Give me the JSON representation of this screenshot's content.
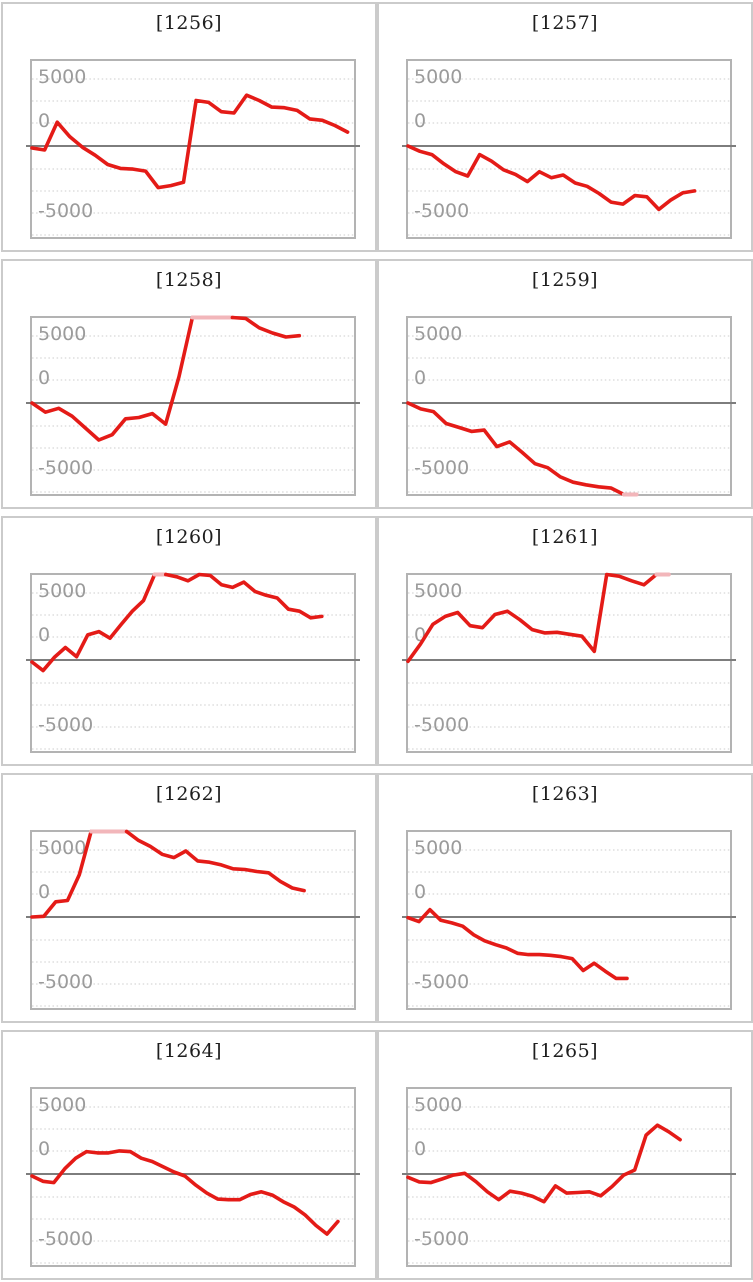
{
  "page": {
    "background_color": "#ffffff",
    "description_labels": {
      "panel_count": "10"
    }
  },
  "theme": {
    "panel_border_color": "#cbcbcb",
    "plot_border_color": "#b3b3b3",
    "gridline_color": "#cdcdcd",
    "zero_axis_color": "#7d7d7d",
    "tick_label_color": "#9b9b9b",
    "title_color": "#1e1e1e",
    "series_color": "#e41b17",
    "clipped_segment_color": "#f2b6ba"
  },
  "chart_data": {
    "type": "line",
    "title": "",
    "xlabel": "",
    "ylabel": "",
    "y_tick_labels": [
      "5000",
      "0",
      "-5000"
    ],
    "y_tick_values": [
      5000,
      0,
      -5000
    ],
    "ylim": [
      -6900,
      6450
    ],
    "grid": "horizontal-dotted",
    "legend_position": "none",
    "note": "Values beyond ylim are drawn clipped flat at the plot edge in a lighter pink color",
    "charts": [
      {
        "title": "[1256]",
        "x_end_fraction": 0.98,
        "values": [
          -150,
          -300,
          1800,
          700,
          -100,
          -700,
          -1400,
          -1700,
          -1750,
          -1900,
          -3150,
          -3000,
          -2750,
          3450,
          3300,
          2600,
          2500,
          3850,
          3450,
          2950,
          2900,
          2700,
          2050,
          1950,
          1550,
          1050
        ]
      },
      {
        "title": "[1257]",
        "x_end_fraction": 0.89,
        "values": [
          0,
          -400,
          -650,
          -1350,
          -1950,
          -2270,
          -650,
          -1150,
          -1800,
          -2150,
          -2700,
          -1950,
          -2400,
          -2200,
          -2800,
          -3050,
          -3600,
          -4250,
          -4400,
          -3750,
          -3850,
          -4800,
          -4100,
          -3550,
          -3400
        ]
      },
      {
        "title": "[1258]",
        "x_end_fraction": 0.83,
        "values": [
          0,
          -700,
          -400,
          -1000,
          -1900,
          -2800,
          -2400,
          -1200,
          -1100,
          -800,
          -1600,
          2000,
          6900,
          7000,
          7000,
          6950,
          6400,
          5700,
          5300,
          5000,
          5100
        ]
      },
      {
        "title": "[1259]",
        "x_end_fraction": 0.71,
        "values": [
          0,
          -450,
          -650,
          -1550,
          -1850,
          -2150,
          -2050,
          -3300,
          -2950,
          -3750,
          -4600,
          -4900,
          -5600,
          -6000,
          -6200,
          -6350,
          -6450,
          -7000,
          -7100
        ]
      },
      {
        "title": "[1260]",
        "x_end_fraction": 0.9,
        "values": [
          -150,
          -800,
          200,
          950,
          250,
          1900,
          2150,
          1650,
          2700,
          3700,
          4500,
          6900,
          7100,
          6300,
          6000,
          6600,
          6400,
          5700,
          5500,
          5900,
          5200,
          4900,
          4700,
          3850,
          3700,
          3200,
          3300
        ]
      },
      {
        "title": "[1261]",
        "x_end_fraction": 0.81,
        "values": [
          -100,
          1200,
          2700,
          3300,
          3600,
          2600,
          2450,
          3450,
          3700,
          3050,
          2300,
          2050,
          2100,
          1950,
          1800,
          650,
          6900,
          6350,
          6000,
          5700,
          6800,
          7100
        ]
      },
      {
        "title": "[1262]",
        "x_end_fraction": 0.845,
        "values": [
          0,
          50,
          1150,
          1250,
          3200,
          7200,
          7300,
          7300,
          7200,
          5800,
          5350,
          4750,
          4500,
          5000,
          4250,
          4150,
          3950,
          3650,
          3600,
          3450,
          3350,
          2700,
          2200,
          2000
        ]
      },
      {
        "title": "[1263]",
        "x_end_fraction": 0.68,
        "values": [
          -50,
          -350,
          550,
          -250,
          -450,
          -700,
          -1350,
          -1800,
          -2100,
          -2350,
          -2750,
          -2850,
          -2850,
          -2900,
          -3000,
          -3150,
          -4050,
          -3500,
          -4100,
          -4650,
          -4650
        ]
      },
      {
        "title": "[1264]",
        "x_end_fraction": 0.95,
        "values": [
          -150,
          -550,
          -650,
          400,
          1200,
          1700,
          1600,
          1600,
          1750,
          1700,
          1200,
          950,
          550,
          150,
          -150,
          -850,
          -1450,
          -1900,
          -1950,
          -1950,
          -1550,
          -1350,
          -1600,
          -2100,
          -2500,
          -3100,
          -3900,
          -4550,
          -3600
        ]
      },
      {
        "title": "[1265]",
        "x_end_fraction": 0.845,
        "values": [
          -250,
          -600,
          -650,
          -380,
          -80,
          50,
          -580,
          -1350,
          -1950,
          -1300,
          -1450,
          -1700,
          -2100,
          -900,
          -1450,
          -1400,
          -1350,
          -1650,
          -950,
          -100,
          300,
          2950,
          3700,
          3200,
          2600
        ]
      }
    ]
  }
}
